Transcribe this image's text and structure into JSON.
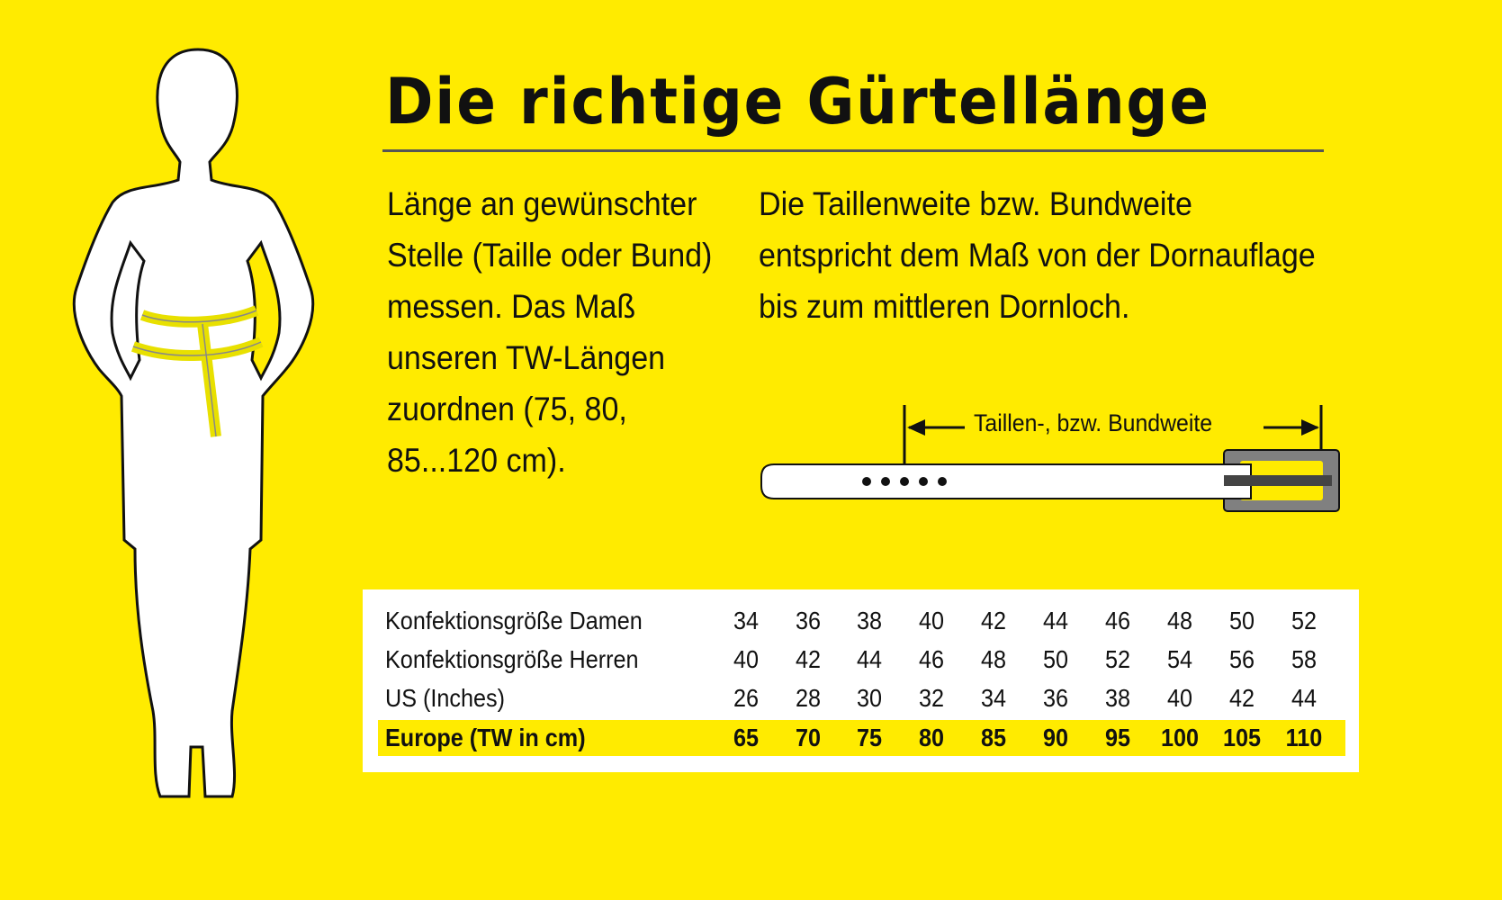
{
  "title": "Die richtige Gürtellänge",
  "left_text": "Länge an gewünschter Stelle (Taille oder Bund) messen. Das Maß unseren TW-Längen zuordnen (75, 80, 85...120 cm).",
  "right_text": "Die Taillenweite bzw. Bundweite entspricht dem Maß von der Dornauflage bis zum mittleren Dornloch.",
  "belt_label": "Taillen-, bzw. Bundweite",
  "colors": {
    "background": "#ffeb00",
    "buckle": "#808080",
    "text": "#111111"
  },
  "table": {
    "rows": [
      {
        "label": "Konfektionsgröße Damen",
        "values": [
          "34",
          "36",
          "38",
          "40",
          "42",
          "44",
          "46",
          "48",
          "50",
          "52"
        ]
      },
      {
        "label": "Konfektionsgröße Herren",
        "values": [
          "40",
          "42",
          "44",
          "46",
          "48",
          "50",
          "52",
          "54",
          "56",
          "58"
        ]
      },
      {
        "label": "US (Inches)",
        "values": [
          "26",
          "28",
          "30",
          "32",
          "34",
          "36",
          "38",
          "40",
          "42",
          "44"
        ]
      },
      {
        "label": "Europe (TW in cm)",
        "values": [
          "65",
          "70",
          "75",
          "80",
          "85",
          "90",
          "95",
          "100",
          "105",
          "110"
        ],
        "highlighted": true
      }
    ]
  }
}
